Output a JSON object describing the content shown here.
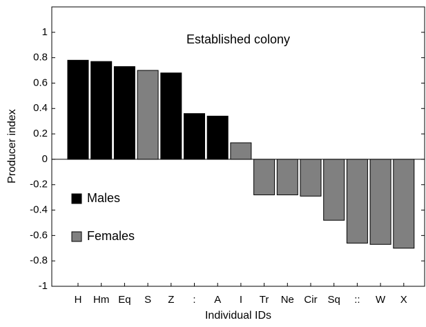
{
  "chart_data": {
    "type": "bar",
    "title": "Established colony",
    "x_label": "Individual IDs",
    "y_label": "Producer index",
    "categories": [
      "H",
      "Hm",
      "Eq",
      "S",
      "Z",
      ":",
      "A",
      "I",
      "Tr",
      "Ne",
      "Cir",
      "Sq",
      "::",
      "W",
      "X"
    ],
    "series": [
      {
        "name": "Males",
        "color": "#000000",
        "values": [
          0.78,
          0.77,
          0.73,
          null,
          0.68,
          0.36,
          0.34,
          null,
          null,
          null,
          null,
          null,
          null,
          null,
          null
        ]
      },
      {
        "name": "Females",
        "color": "#808080",
        "values": [
          null,
          null,
          null,
          0.7,
          null,
          null,
          null,
          0.13,
          -0.28,
          -0.28,
          -0.29,
          -0.48,
          -0.66,
          -0.67,
          -0.7
        ]
      }
    ],
    "ylim": [
      -1,
      1.2
    ],
    "yticks": [
      -1,
      -0.8,
      -0.6,
      -0.4,
      -0.2,
      0,
      0.2,
      0.4,
      0.6,
      0.8,
      1
    ]
  }
}
